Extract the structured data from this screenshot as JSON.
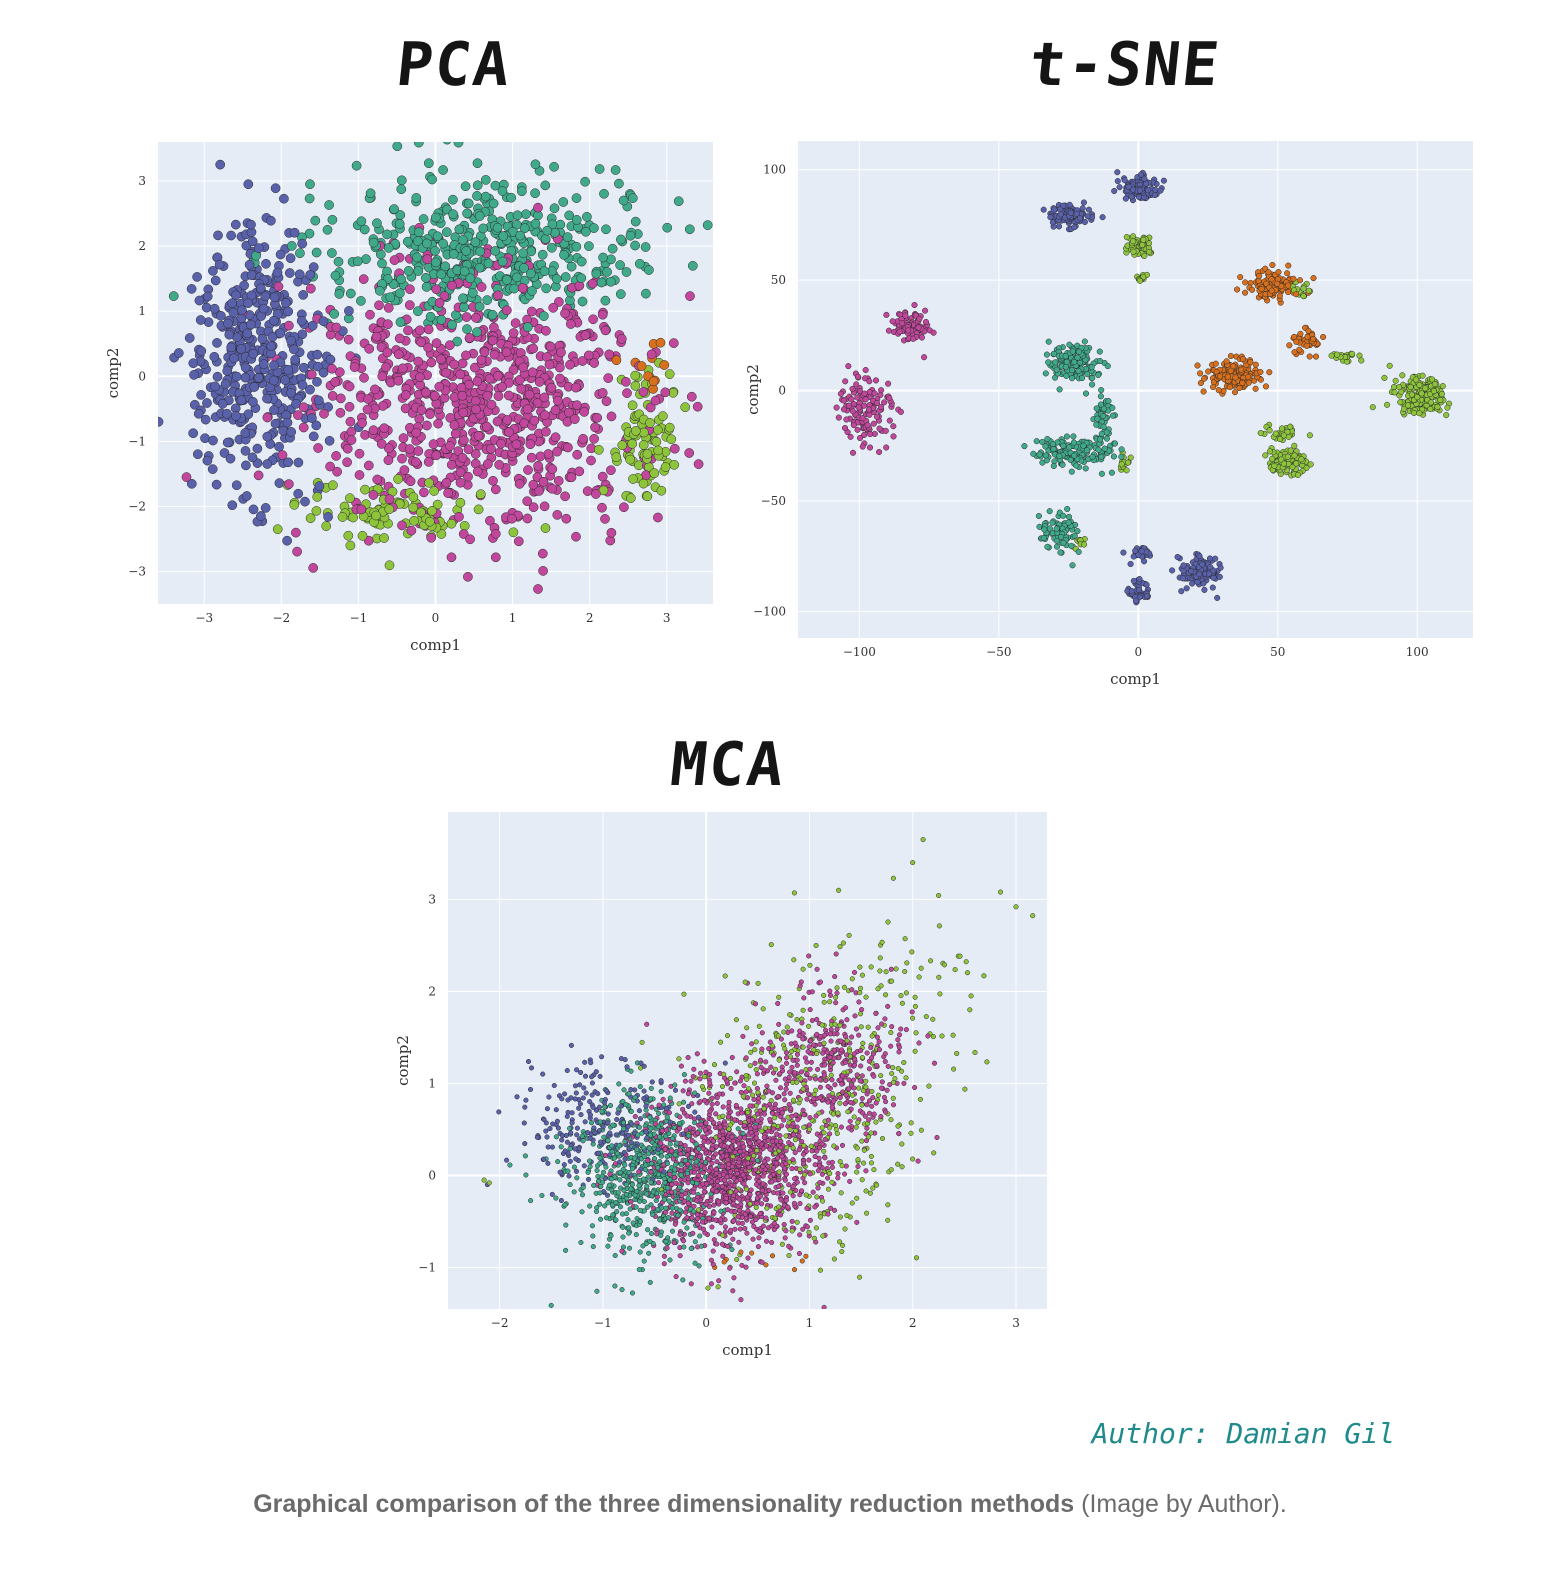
{
  "caption": {
    "bold": "Graphical comparison of the three dimensionality reduction methods",
    "rest": " (Image by Author)."
  },
  "author": "Author: Damian Gil",
  "colors": {
    "plot_bg": "#e5ecf6",
    "grid": "#ffffff",
    "blue": "#5a61ab",
    "teal": "#3fa98a",
    "pink": "#c0479b",
    "green": "#8dc43b",
    "orange": "#d86f1c",
    "marker_edge": "#2a2a2a"
  },
  "chart_data": [
    {
      "id": "pca",
      "type": "scatter",
      "title": "PCA",
      "xlabel": "comp1",
      "ylabel": "comp2",
      "xlim": [
        -3.6,
        3.6
      ],
      "ylim": [
        -3.5,
        3.6
      ],
      "xticks": [
        -3,
        -2,
        -1,
        0,
        1,
        2,
        3
      ],
      "yticks": [
        -3,
        -2,
        -1,
        0,
        1,
        2,
        3
      ],
      "grid": true,
      "clusters": [
        {
          "color": "blue",
          "cx": -2.3,
          "cy": 0.3,
          "sx": 0.45,
          "sy": 1.0,
          "n": 420
        },
        {
          "color": "teal",
          "cx": 0.6,
          "cy": 1.9,
          "sx": 1.1,
          "sy": 0.55,
          "n": 480
        },
        {
          "color": "pink",
          "cx": 0.5,
          "cy": -0.4,
          "sx": 1.1,
          "sy": 1.0,
          "n": 800
        },
        {
          "color": "green",
          "cx": 2.7,
          "cy": -0.9,
          "sx": 0.25,
          "sy": 0.55,
          "n": 90
        },
        {
          "color": "green",
          "cx": -0.6,
          "cy": -2.1,
          "sx": 0.6,
          "sy": 0.25,
          "n": 90
        },
        {
          "color": "orange",
          "cx": 2.8,
          "cy": 0.1,
          "sx": 0.15,
          "sy": 0.2,
          "n": 12
        }
      ]
    },
    {
      "id": "tsne",
      "type": "scatter",
      "title": "t-SNE",
      "xlabel": "comp1",
      "ylabel": "comp2",
      "xlim": [
        -122,
        120
      ],
      "ylim": [
        -112,
        113
      ],
      "xticks": [
        -100,
        -50,
        0,
        50,
        100
      ],
      "yticks": [
        -100,
        -50,
        0,
        50,
        100
      ],
      "grid": true,
      "clusters": [
        {
          "color": "blue",
          "cx": 0,
          "cy": 92,
          "sx": 3.5,
          "sy": 3,
          "n": 110
        },
        {
          "color": "blue",
          "cx": -24,
          "cy": 79,
          "sx": 3.5,
          "sy": 2.5,
          "n": 110
        },
        {
          "color": "green",
          "cx": 0,
          "cy": 66,
          "sx": 2.5,
          "sy": 2.5,
          "n": 55
        },
        {
          "color": "green",
          "cx": 1,
          "cy": 51,
          "sx": 1.2,
          "sy": 1.2,
          "n": 12
        },
        {
          "color": "orange",
          "cx": 48,
          "cy": 48,
          "sx": 4,
          "sy": 3.5,
          "n": 130
        },
        {
          "color": "green",
          "cx": 58,
          "cy": 45,
          "sx": 2,
          "sy": 1.5,
          "n": 14
        },
        {
          "color": "orange",
          "cx": 60,
          "cy": 22,
          "sx": 2.5,
          "sy": 3,
          "n": 40
        },
        {
          "color": "green",
          "cx": 74,
          "cy": 15,
          "sx": 2,
          "sy": 1.5,
          "n": 18
        },
        {
          "color": "orange",
          "cx": 34,
          "cy": 7,
          "sx": 5,
          "sy": 3.5,
          "n": 150
        },
        {
          "color": "green",
          "cx": 101,
          "cy": -3,
          "sx": 4.5,
          "sy": 4.5,
          "n": 200
        },
        {
          "color": "pink",
          "cx": -82,
          "cy": 29,
          "sx": 4,
          "sy": 3.5,
          "n": 90
        },
        {
          "color": "pink",
          "cx": -98,
          "cy": -8,
          "sx": 5,
          "sy": 8,
          "n": 130
        },
        {
          "color": "teal",
          "cx": -24,
          "cy": 13,
          "sx": 4.5,
          "sy": 4,
          "n": 160
        },
        {
          "color": "teal",
          "cx": -12,
          "cy": -12,
          "sx": 2,
          "sy": 5,
          "n": 45
        },
        {
          "color": "teal",
          "cx": -23,
          "cy": -28,
          "sx": 7,
          "sy": 3.5,
          "n": 160
        },
        {
          "color": "green",
          "cx": -5,
          "cy": -33,
          "sx": 1.5,
          "sy": 2,
          "n": 14
        },
        {
          "color": "teal",
          "cx": -28,
          "cy": -64,
          "sx": 3.5,
          "sy": 4,
          "n": 70
        },
        {
          "color": "green",
          "cx": -22,
          "cy": -68,
          "sx": 1.2,
          "sy": 1.5,
          "n": 10
        },
        {
          "color": "green",
          "cx": 52,
          "cy": -19,
          "sx": 3,
          "sy": 2,
          "n": 30
        },
        {
          "color": "green",
          "cx": 54,
          "cy": -32,
          "sx": 3.5,
          "sy": 3,
          "n": 100
        },
        {
          "color": "blue",
          "cx": 1,
          "cy": -73,
          "sx": 2,
          "sy": 2,
          "n": 35
        },
        {
          "color": "blue",
          "cx": 0,
          "cy": -92,
          "sx": 2,
          "sy": 2.5,
          "n": 40
        },
        {
          "color": "blue",
          "cx": 22,
          "cy": -82,
          "sx": 3.5,
          "sy": 3.5,
          "n": 110
        }
      ]
    },
    {
      "id": "mca",
      "type": "scatter",
      "title": "MCA",
      "xlabel": "comp1",
      "ylabel": "comp2",
      "xlim": [
        -2.5,
        3.3
      ],
      "ylim": [
        -1.45,
        3.95
      ],
      "xticks": [
        -2,
        -1,
        0,
        1,
        2,
        3
      ],
      "yticks": [
        -1,
        0,
        1,
        2,
        3
      ],
      "grid": true,
      "clusters": [
        {
          "color": "blue",
          "cx": -1.0,
          "cy": 0.5,
          "sx": 0.4,
          "sy": 0.35,
          "n": 260
        },
        {
          "color": "teal",
          "cx": -0.6,
          "cy": 0.0,
          "sx": 0.35,
          "sy": 0.45,
          "n": 650
        },
        {
          "color": "green",
          "cx": 0.9,
          "cy": 0.6,
          "sx": 0.6,
          "sy": 0.7,
          "n": 380
        },
        {
          "color": "green",
          "cx": 1.8,
          "cy": 2.0,
          "sx": 0.45,
          "sy": 0.6,
          "n": 90
        },
        {
          "color": "pink",
          "cx": 0.25,
          "cy": 0.1,
          "sx": 0.4,
          "sy": 0.45,
          "n": 1200
        },
        {
          "color": "pink",
          "cx": 1.2,
          "cy": 1.1,
          "sx": 0.35,
          "sy": 0.45,
          "n": 380
        },
        {
          "color": "orange",
          "cx": 0.5,
          "cy": -0.9,
          "sx": 0.3,
          "sy": 0.12,
          "n": 10
        }
      ],
      "outliers": [
        [
          2.85,
          3.08
        ],
        [
          3.0,
          2.92
        ],
        [
          2.1,
          3.65
        ],
        [
          2.0,
          3.4
        ],
        [
          -2.1,
          -0.08
        ],
        [
          -2.15,
          -0.05
        ]
      ]
    }
  ]
}
